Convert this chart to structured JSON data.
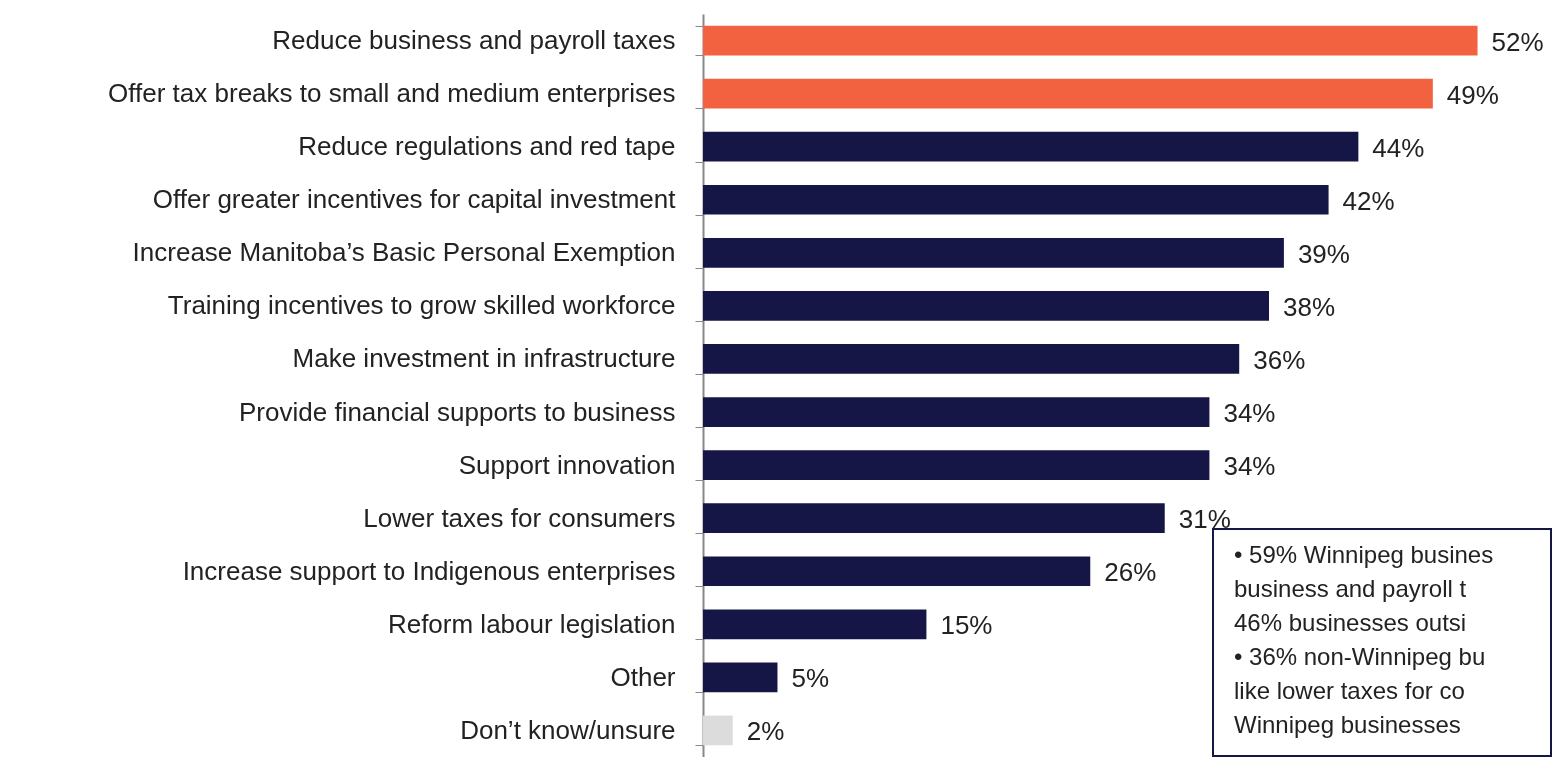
{
  "chart_data": {
    "type": "bar",
    "orientation": "horizontal",
    "tick_labels": "y",
    "categories": [
      "Reduce business and payroll taxes",
      "Offer tax breaks to small and medium enterprises",
      "Reduce regulations and red tape",
      "Offer greater incentives for capital investment",
      "Increase Manitoba’s Basic Personal Exemption",
      "Training incentives to grow skilled workforce",
      "Make investment in infrastructure",
      "Provide financial supports to business",
      "Support innovation",
      "Lower taxes for consumers",
      "Increase support to Indigenous enterprises",
      "Reform labour legislation",
      "Other",
      "Don’t know/unsure"
    ],
    "values": [
      52,
      49,
      44,
      42,
      39,
      38,
      36,
      34,
      34,
      31,
      26,
      15,
      5,
      2
    ],
    "value_labels": [
      "52%",
      "49%",
      "44%",
      "42%",
      "39%",
      "38%",
      "36%",
      "34%",
      "34%",
      "31%",
      "26%",
      "15%",
      "5%",
      "2%"
    ],
    "colors": [
      "#f26241",
      "#f26241",
      "#161646",
      "#161646",
      "#161646",
      "#161646",
      "#161646",
      "#161646",
      "#161646",
      "#161646",
      "#161646",
      "#161646",
      "#161646",
      "#dcdcdc"
    ],
    "xlim": [
      0,
      57
    ],
    "annotations": [
      "• 59% Winnipeg busines",
      "business and payroll t",
      "46% businesses outsi",
      "• 36% non-Winnipeg bu",
      "like lower taxes for co",
      "Winnipeg businesses"
    ]
  }
}
